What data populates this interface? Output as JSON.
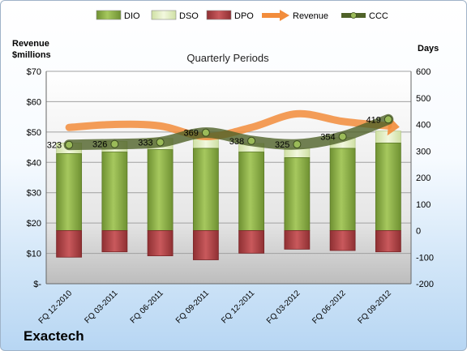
{
  "company": "Exactech",
  "chart_data": {
    "type": "bar",
    "title": "Quarterly Periods",
    "left_axis_title": [
      "Revenue",
      "$millions"
    ],
    "right_axis_title": "Days",
    "categories": [
      "FQ 12-2010",
      "FQ 03-2011",
      "FQ 06-2011",
      "FQ 09-2011",
      "FQ 12-2011",
      "FQ 03-2012",
      "FQ 06-2012",
      "FQ 09-2012"
    ],
    "left_ticks": [
      "$-",
      "$10",
      "$20",
      "$30",
      "$40",
      "$50",
      "$60",
      "$70"
    ],
    "left_range": [
      0,
      70
    ],
    "right_ticks": [
      "-200",
      "-100",
      "0",
      "100",
      "200",
      "300",
      "400",
      "500",
      "600"
    ],
    "right_range": [
      -200,
      600
    ],
    "legend": [
      "DIO",
      "DSO",
      "DPO",
      "Revenue",
      "CCC"
    ],
    "legend_position": "top",
    "series": [
      {
        "name": "DIO",
        "axis": "right",
        "values": [
          290,
          296,
          305,
          310,
          296,
          275,
          310,
          330
        ]
      },
      {
        "name": "DSO",
        "axis": "right",
        "values": [
          40,
          40,
          42,
          50,
          32,
          35,
          40,
          45
        ]
      },
      {
        "name": "DPO",
        "axis": "right",
        "values": [
          -100,
          -80,
          -95,
          -110,
          -85,
          -70,
          -75,
          -80
        ]
      },
      {
        "name": "Revenue",
        "axis": "left",
        "values": [
          51.5,
          52.5,
          52,
          48.5,
          51.5,
          56,
          53.5,
          52
        ]
      },
      {
        "name": "CCC",
        "axis": "right",
        "values": [
          323,
          326,
          333,
          369,
          338,
          325,
          354,
          419
        ]
      }
    ],
    "ccc_labels": [
      "323",
      "326",
      "333",
      "369",
      "338",
      "325",
      "354",
      "419"
    ],
    "colors": {
      "DIO": "#8db04a",
      "DSO": "#e6f1c8",
      "DPO": "#b54a4d",
      "Revenue": "#f28c3b",
      "CCC": "#4f6228",
      "CCC_marker": "#9bbb59"
    },
    "grid": true
  }
}
